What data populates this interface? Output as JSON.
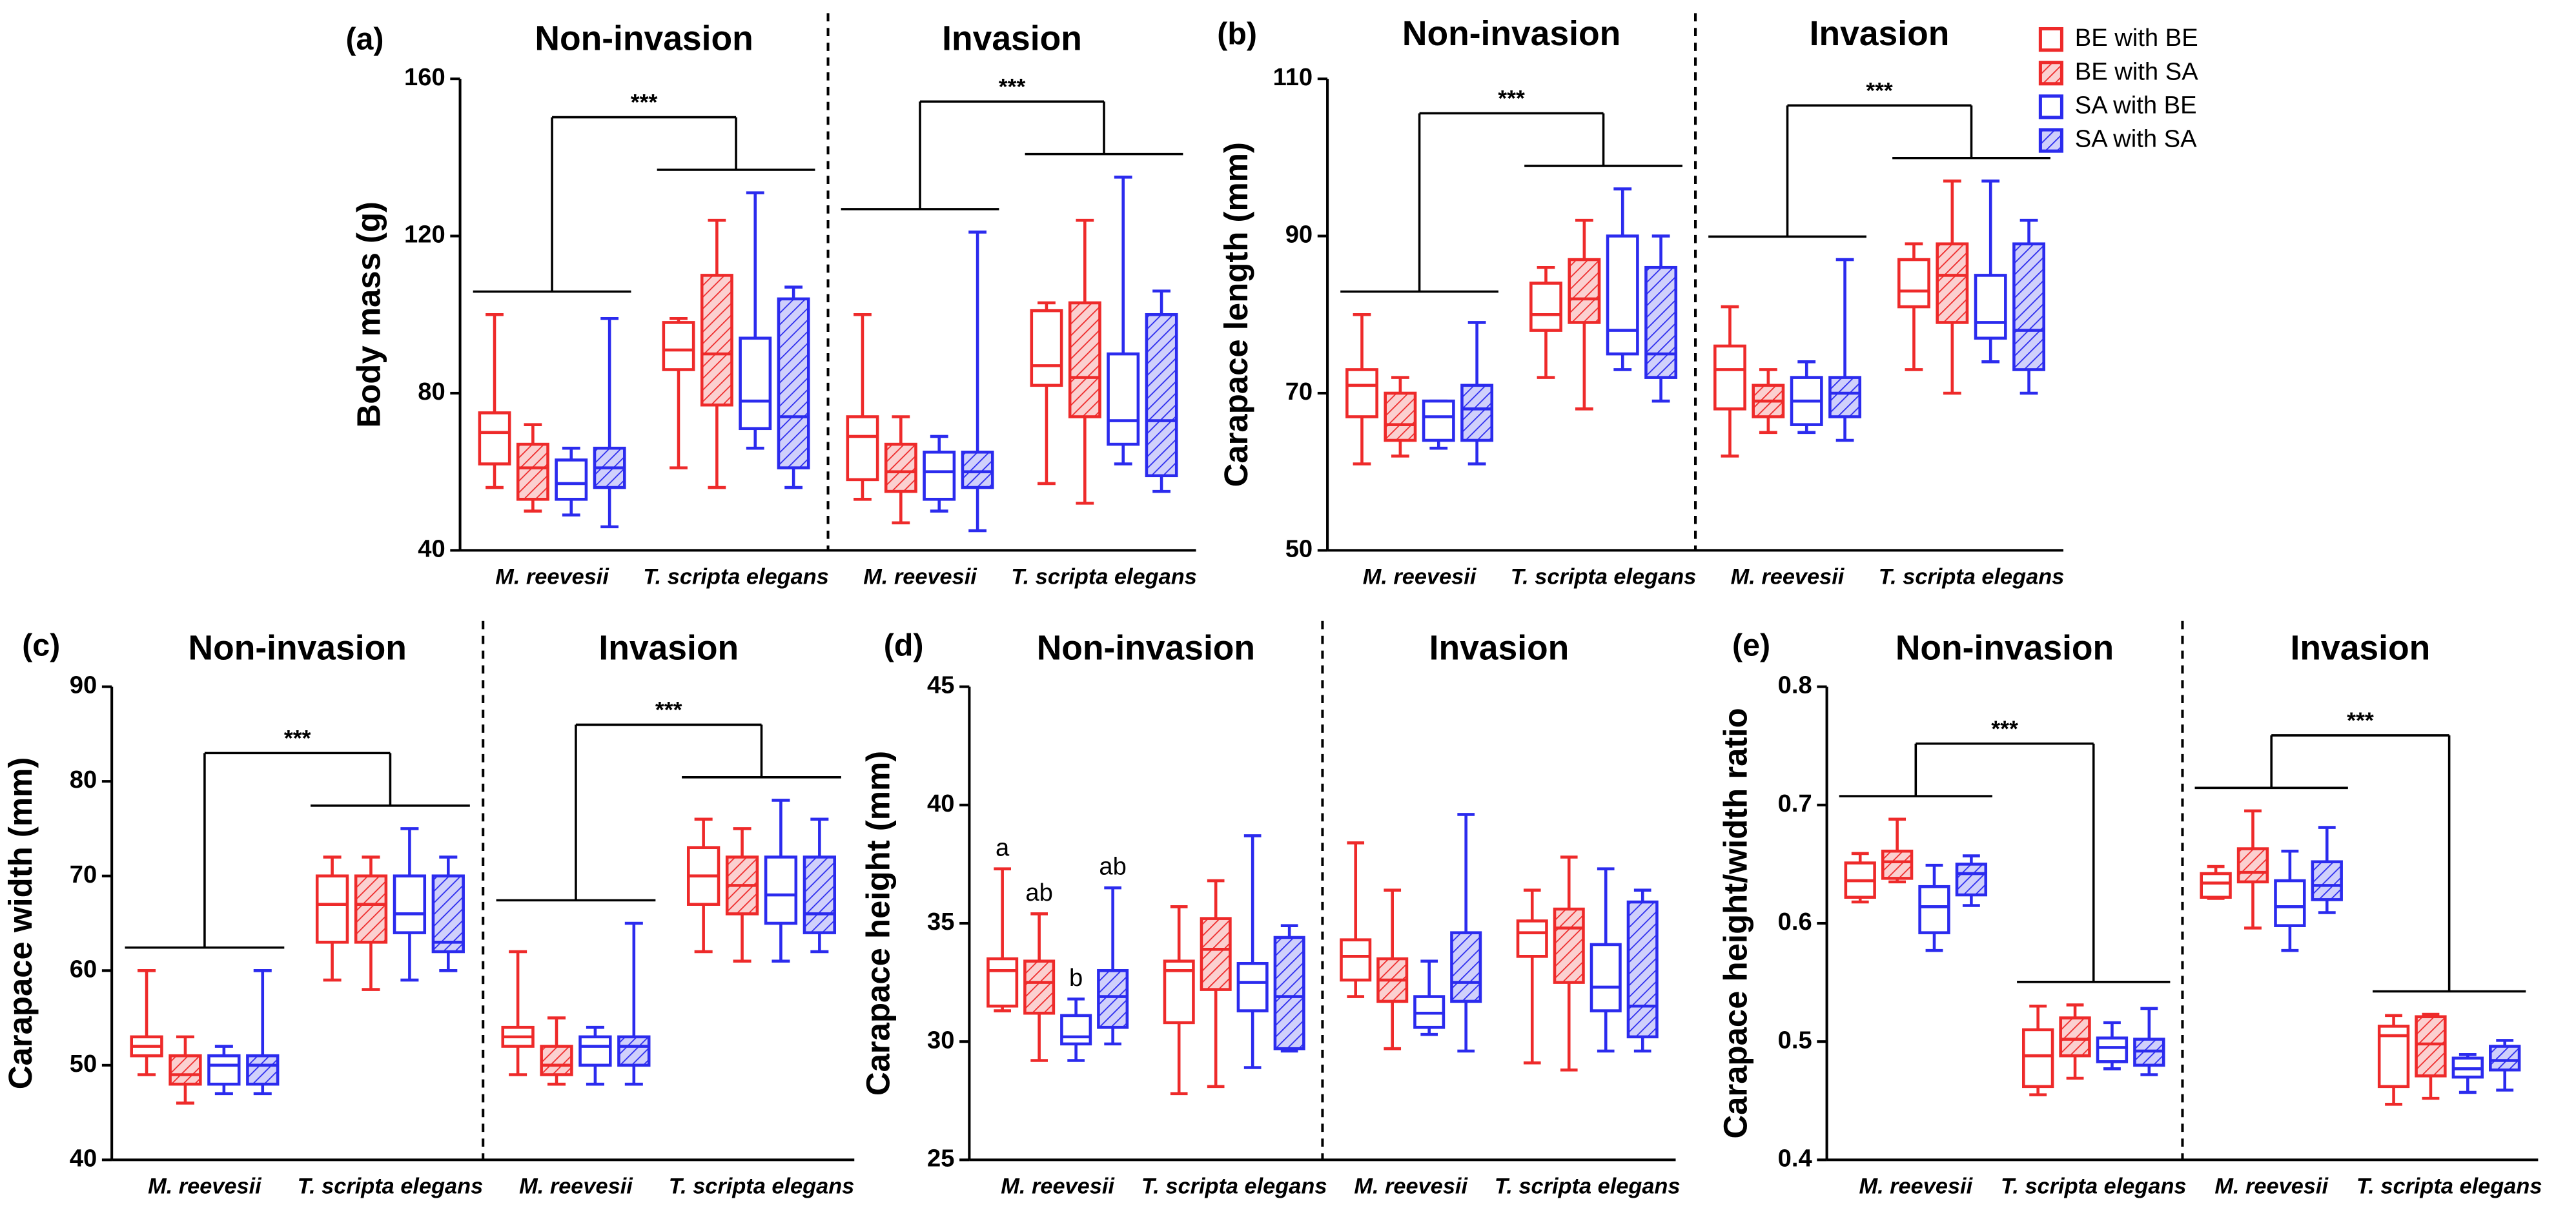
{
  "legend": {
    "position": "top-right",
    "series": [
      {
        "name": "BE with BE",
        "color": "#ee2a2a",
        "hatch": false
      },
      {
        "name": "BE with SA",
        "color": "#ee2a2a",
        "hatch": true
      },
      {
        "name": "SA with BE",
        "color": "#2b2bee",
        "hatch": false
      },
      {
        "name": "SA with SA",
        "color": "#2b2bee",
        "hatch": true
      }
    ]
  },
  "chart_data": [
    {
      "type": "box",
      "panel_label": "(a)",
      "groups": [
        "Non-invasion",
        "Invasion"
      ],
      "categories": [
        "M. reevesii",
        "T. scripta elegans"
      ],
      "y_label": "Body mass (g)",
      "ylim": [
        40,
        160
      ],
      "yticks": [
        40,
        80,
        120,
        160
      ],
      "significance": [
        "***",
        "***"
      ],
      "series": [
        {
          "values": [
            {
              "min": 56,
              "q1": 62,
              "median": 70,
              "q3": 75,
              "max": 100
            },
            {
              "min": 61,
              "q1": 86,
              "median": 91,
              "q3": 98,
              "max": 99
            },
            {
              "min": 53,
              "q1": 58,
              "median": 69,
              "q3": 74,
              "max": 100
            },
            {
              "min": 57,
              "q1": 82,
              "median": 87,
              "q3": 101,
              "max": 103
            }
          ]
        },
        {
          "values": [
            {
              "min": 50,
              "q1": 53,
              "median": 61,
              "q3": 67,
              "max": 72
            },
            {
              "min": 56,
              "q1": 77,
              "median": 90,
              "q3": 110,
              "max": 124
            },
            {
              "min": 47,
              "q1": 55,
              "median": 60,
              "q3": 67,
              "max": 74
            },
            {
              "min": 52,
              "q1": 74,
              "median": 84,
              "q3": 103,
              "max": 124
            }
          ]
        },
        {
          "values": [
            {
              "min": 49,
              "q1": 53,
              "median": 57,
              "q3": 63,
              "max": 66
            },
            {
              "min": 66,
              "q1": 71,
              "median": 78,
              "q3": 94,
              "max": 131
            },
            {
              "min": 50,
              "q1": 53,
              "median": 60,
              "q3": 65,
              "max": 69
            },
            {
              "min": 62,
              "q1": 67,
              "median": 73,
              "q3": 90,
              "max": 135
            }
          ]
        },
        {
          "values": [
            {
              "min": 46,
              "q1": 56,
              "median": 61,
              "q3": 66,
              "max": 99
            },
            {
              "min": 56,
              "q1": 61,
              "median": 74,
              "q3": 104,
              "max": 107
            },
            {
              "min": 45,
              "q1": 56,
              "median": 60,
              "q3": 65,
              "max": 121
            },
            {
              "min": 55,
              "q1": 59,
              "median": 73,
              "q3": 100,
              "max": 106
            }
          ]
        }
      ]
    },
    {
      "type": "box",
      "panel_label": "(b)",
      "groups": [
        "Non-invasion",
        "Invasion"
      ],
      "categories": [
        "M. reevesii",
        "T. scripta elegans"
      ],
      "y_label": "Carapace length (mm)",
      "ylim": [
        50,
        110
      ],
      "yticks": [
        50,
        70,
        90,
        110
      ],
      "significance": [
        "***",
        "***"
      ],
      "series": [
        {
          "values": [
            {
              "min": 61,
              "q1": 67,
              "median": 71,
              "q3": 73,
              "max": 80
            },
            {
              "min": 72,
              "q1": 78,
              "median": 80,
              "q3": 84,
              "max": 86
            },
            {
              "min": 62,
              "q1": 68,
              "median": 73,
              "q3": 76,
              "max": 81
            },
            {
              "min": 73,
              "q1": 81,
              "median": 83,
              "q3": 87,
              "max": 89
            }
          ]
        },
        {
          "values": [
            {
              "min": 62,
              "q1": 64,
              "median": 66,
              "q3": 70,
              "max": 72
            },
            {
              "min": 68,
              "q1": 79,
              "median": 82,
              "q3": 87,
              "max": 92
            },
            {
              "min": 65,
              "q1": 67,
              "median": 69,
              "q3": 71,
              "max": 73
            },
            {
              "min": 70,
              "q1": 79,
              "median": 85,
              "q3": 89,
              "max": 97
            }
          ]
        },
        {
          "values": [
            {
              "min": 63,
              "q1": 64,
              "median": 67,
              "q3": 69,
              "max": 69
            },
            {
              "min": 73,
              "q1": 75,
              "median": 78,
              "q3": 90,
              "max": 96
            },
            {
              "min": 65,
              "q1": 66,
              "median": 69,
              "q3": 72,
              "max": 74
            },
            {
              "min": 74,
              "q1": 77,
              "median": 79,
              "q3": 85,
              "max": 97
            }
          ]
        },
        {
          "values": [
            {
              "min": 61,
              "q1": 64,
              "median": 68,
              "q3": 71,
              "max": 79
            },
            {
              "min": 69,
              "q1": 72,
              "median": 75,
              "q3": 86,
              "max": 90
            },
            {
              "min": 64,
              "q1": 67,
              "median": 70,
              "q3": 72,
              "max": 87
            },
            {
              "min": 70,
              "q1": 73,
              "median": 78,
              "q3": 89,
              "max": 92
            }
          ]
        }
      ]
    },
    {
      "type": "box",
      "panel_label": "(c)",
      "groups": [
        "Non-invasion",
        "Invasion"
      ],
      "categories": [
        "M. reevesii",
        "T. scripta elegans"
      ],
      "y_label": "Carapace width (mm)",
      "ylim": [
        40,
        90
      ],
      "yticks": [
        40,
        50,
        60,
        70,
        80,
        90
      ],
      "significance": [
        "***",
        "***"
      ],
      "series": [
        {
          "values": [
            {
              "min": 49,
              "q1": 51,
              "median": 52,
              "q3": 53,
              "max": 60
            },
            {
              "min": 59,
              "q1": 63,
              "median": 67,
              "q3": 70,
              "max": 72
            },
            {
              "min": 49,
              "q1": 52,
              "median": 53,
              "q3": 54,
              "max": 62
            },
            {
              "min": 62,
              "q1": 67,
              "median": 70,
              "q3": 73,
              "max": 76
            }
          ]
        },
        {
          "values": [
            {
              "min": 46,
              "q1": 48,
              "median": 49,
              "q3": 51,
              "max": 53
            },
            {
              "min": 58,
              "q1": 63,
              "median": 67,
              "q3": 70,
              "max": 72
            },
            {
              "min": 48,
              "q1": 49,
              "median": 50,
              "q3": 52,
              "max": 55
            },
            {
              "min": 61,
              "q1": 66,
              "median": 69,
              "q3": 72,
              "max": 75
            }
          ]
        },
        {
          "values": [
            {
              "min": 47,
              "q1": 48,
              "median": 50,
              "q3": 51,
              "max": 52
            },
            {
              "min": 59,
              "q1": 64,
              "median": 66,
              "q3": 70,
              "max": 75
            },
            {
              "min": 48,
              "q1": 50,
              "median": 52,
              "q3": 53,
              "max": 54
            },
            {
              "min": 61,
              "q1": 65,
              "median": 68,
              "q3": 72,
              "max": 78
            }
          ]
        },
        {
          "values": [
            {
              "min": 47,
              "q1": 48,
              "median": 50,
              "q3": 51,
              "max": 60
            },
            {
              "min": 60,
              "q1": 62,
              "median": 63,
              "q3": 70,
              "max": 72
            },
            {
              "min": 48,
              "q1": 50,
              "median": 52,
              "q3": 53,
              "max": 65
            },
            {
              "min": 62,
              "q1": 64,
              "median": 66,
              "q3": 72,
              "max": 76
            }
          ]
        }
      ]
    },
    {
      "type": "box",
      "panel_label": "(d)",
      "groups": [
        "Non-invasion",
        "Invasion"
      ],
      "categories": [
        "M. reevesii",
        "T. scripta elegans"
      ],
      "y_label": "Carapace height (mm)",
      "ylim": [
        25,
        45
      ],
      "yticks": [
        25,
        30,
        35,
        40,
        45
      ],
      "significance": [],
      "series": [
        {
          "values": [
            {
              "min": 31.3,
              "q1": 31.5,
              "median": 33,
              "q3": 33.5,
              "max": 37.3,
              "label": "a"
            },
            {
              "min": 27.8,
              "q1": 30.8,
              "median": 33,
              "q3": 33.4,
              "max": 35.7
            },
            {
              "min": 31.9,
              "q1": 32.6,
              "median": 33.6,
              "q3": 34.3,
              "max": 38.4
            },
            {
              "min": 29.1,
              "q1": 33.6,
              "median": 34.6,
              "q3": 35.1,
              "max": 36.4
            }
          ]
        },
        {
          "values": [
            {
              "min": 29.2,
              "q1": 31.2,
              "median": 32.5,
              "q3": 33.4,
              "max": 35.4,
              "label": "ab"
            },
            {
              "min": 28.1,
              "q1": 32.2,
              "median": 33.9,
              "q3": 35.2,
              "max": 36.8
            },
            {
              "min": 29.7,
              "q1": 31.7,
              "median": 32.6,
              "q3": 33.5,
              "max": 36.4
            },
            {
              "min": 28.8,
              "q1": 32.5,
              "median": 34.8,
              "q3": 35.6,
              "max": 37.8
            }
          ]
        },
        {
          "values": [
            {
              "min": 29.2,
              "q1": 29.9,
              "median": 30.2,
              "q3": 31.1,
              "max": 31.8,
              "label": "b"
            },
            {
              "min": 28.9,
              "q1": 31.3,
              "median": 32.5,
              "q3": 33.3,
              "max": 38.7
            },
            {
              "min": 30.3,
              "q1": 30.6,
              "median": 31.2,
              "q3": 31.9,
              "max": 33.4
            },
            {
              "min": 29.6,
              "q1": 31.3,
              "median": 32.3,
              "q3": 34.1,
              "max": 37.3
            }
          ]
        },
        {
          "values": [
            {
              "min": 29.9,
              "q1": 30.6,
              "median": 31.9,
              "q3": 33,
              "max": 36.5,
              "label": "ab"
            },
            {
              "min": 29.6,
              "q1": 29.7,
              "median": 31.9,
              "q3": 34.4,
              "max": 34.9
            },
            {
              "min": 29.6,
              "q1": 31.7,
              "median": 32.5,
              "q3": 34.6,
              "max": 39.6
            },
            {
              "min": 29.6,
              "q1": 30.2,
              "median": 31.5,
              "q3": 35.9,
              "max": 36.4
            }
          ]
        }
      ]
    },
    {
      "type": "box",
      "panel_label": "(e)",
      "groups": [
        "Non-invasion",
        "Invasion"
      ],
      "categories": [
        "M. reevesii",
        "T. scripta elegans"
      ],
      "y_label": "Carapace height/width ratio",
      "ylim": [
        0.4,
        0.8
      ],
      "yticks": [
        0.4,
        0.5,
        0.6,
        0.7,
        0.8
      ],
      "significance": [
        "***",
        "***"
      ],
      "series": [
        {
          "values": [
            {
              "min": 0.618,
              "q1": 0.622,
              "median": 0.636,
              "q3": 0.651,
              "max": 0.659
            },
            {
              "min": 0.455,
              "q1": 0.462,
              "median": 0.488,
              "q3": 0.51,
              "max": 0.53
            },
            {
              "min": 0.621,
              "q1": 0.622,
              "median": 0.634,
              "q3": 0.642,
              "max": 0.648
            },
            {
              "min": 0.447,
              "q1": 0.462,
              "median": 0.505,
              "q3": 0.513,
              "max": 0.522
            }
          ]
        },
        {
          "values": [
            {
              "min": 0.635,
              "q1": 0.638,
              "median": 0.652,
              "q3": 0.661,
              "max": 0.688
            },
            {
              "min": 0.469,
              "q1": 0.488,
              "median": 0.502,
              "q3": 0.52,
              "max": 0.531
            },
            {
              "min": 0.596,
              "q1": 0.635,
              "median": 0.643,
              "q3": 0.663,
              "max": 0.695
            },
            {
              "min": 0.452,
              "q1": 0.471,
              "median": 0.498,
              "q3": 0.521,
              "max": 0.523
            }
          ]
        },
        {
          "values": [
            {
              "min": 0.577,
              "q1": 0.592,
              "median": 0.614,
              "q3": 0.631,
              "max": 0.649
            },
            {
              "min": 0.477,
              "q1": 0.483,
              "median": 0.495,
              "q3": 0.503,
              "max": 0.516
            },
            {
              "min": 0.577,
              "q1": 0.598,
              "median": 0.614,
              "q3": 0.636,
              "max": 0.661
            },
            {
              "min": 0.457,
              "q1": 0.47,
              "median": 0.477,
              "q3": 0.486,
              "max": 0.489
            }
          ]
        },
        {
          "values": [
            {
              "min": 0.615,
              "q1": 0.624,
              "median": 0.642,
              "q3": 0.65,
              "max": 0.657
            },
            {
              "min": 0.472,
              "q1": 0.48,
              "median": 0.492,
              "q3": 0.502,
              "max": 0.528
            },
            {
              "min": 0.609,
              "q1": 0.62,
              "median": 0.632,
              "q3": 0.652,
              "max": 0.681
            },
            {
              "min": 0.459,
              "q1": 0.476,
              "median": 0.484,
              "q3": 0.496,
              "max": 0.501
            }
          ]
        }
      ]
    }
  ]
}
